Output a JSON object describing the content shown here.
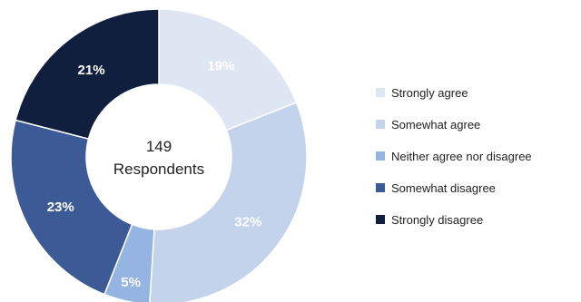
{
  "chart_data": {
    "type": "pie",
    "center_label": {
      "value": "149",
      "text": "Respondents"
    },
    "slices": [
      {
        "name": "Strongly agree",
        "value": 19,
        "label": "19%",
        "color": "#dde6f2"
      },
      {
        "name": "Somewhat agree",
        "value": 32,
        "label": "32%",
        "color": "#c3d3ec"
      },
      {
        "name": "Neither agree nor disagree",
        "value": 5,
        "label": "5%",
        "color": "#94b4e1"
      },
      {
        "name": "Somewhat disagree",
        "value": 23,
        "label": "23%",
        "color": "#3c5b96"
      },
      {
        "name": "Strongly disagree",
        "value": 21,
        "label": "21%",
        "color": "#0f1f3d"
      }
    ],
    "legend_position": "right"
  }
}
